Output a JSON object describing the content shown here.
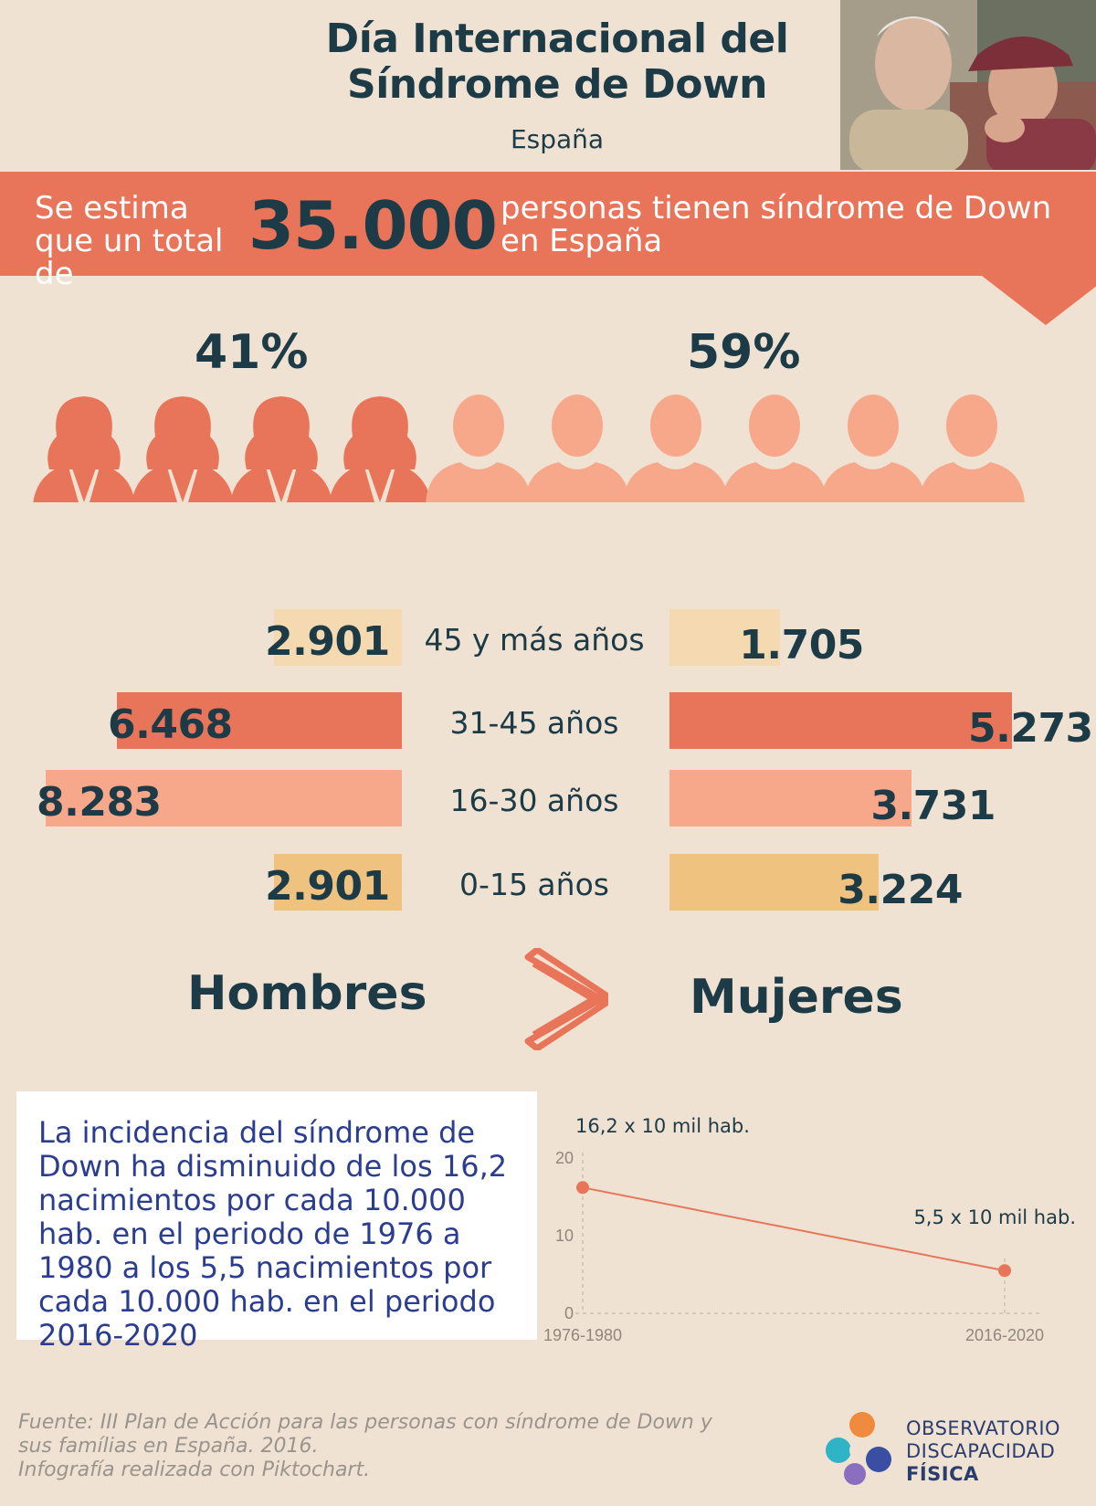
{
  "header": {
    "title": "Día Internacional del Síndrome de Down",
    "subtitle": "España"
  },
  "banner": {
    "lead": "Se estima que un total de",
    "number": "35.000",
    "text": "personas tienen síndrome de Down en España"
  },
  "gender_split": {
    "left_pct": "41%",
    "right_pct": "59%",
    "icons_left": 4,
    "icons_right": 6,
    "color_women": "#e8755a",
    "color_men": "#f7a88b"
  },
  "age_groups": [
    {
      "label": "45 y más años",
      "hombres": "2.901",
      "mujeres": "1.705",
      "hombres_num": 2901,
      "mujeres_num": 1705,
      "color": "#f5d9b0"
    },
    {
      "label": "31-45 años",
      "hombres": "6.468",
      "mujeres": "5.273",
      "hombres_num": 6468,
      "mujeres_num": 5273,
      "color": "#e8755a"
    },
    {
      "label": "16-30 años",
      "hombres": "8.283",
      "mujeres": "3.731",
      "hombres_num": 8283,
      "mujeres_num": 3731,
      "color": "#f7a88b"
    },
    {
      "label": "0-15 años",
      "hombres": "2.901",
      "mujeres": "3.224",
      "hombres_num": 2901,
      "mujeres_num": 3224,
      "color": "#f0c27f"
    }
  ],
  "legend": {
    "left": "Hombres",
    "symbol": ">",
    "right": "Mujeres"
  },
  "incidence": {
    "text": "La incidencia del síndrome de Down ha disminuido de los 16,2 nacimientos por cada 10.000 hab. en el periodo de 1976 a 1980 a los 5,5 nacimientos por cada 10.000 hab. en el periodo 2016-2020"
  },
  "chart_data": {
    "type": "line",
    "categories": [
      "1976-1980",
      "2016-2020"
    ],
    "series": [
      {
        "values": [
          16.2,
          5.5
        ]
      }
    ],
    "data_labels": [
      "16,2 x 10 mil hab.",
      "5,5 x 10 mil hab."
    ],
    "yticks": [
      "0",
      "10",
      "20"
    ],
    "ylim": [
      0,
      20
    ],
    "color": "#e8755a"
  },
  "footer": {
    "source_line1": "Fuente: III Plan de Acción para las personas con síndrome de Down y",
    "source_line2": "sus famílias en España. 2016.",
    "source_line3": "Infografía realizada con Piktochart.",
    "logo_line1": "OBSERVATORIO",
    "logo_line2": "DISCAPACIDAD",
    "logo_line3": "FÍSICA"
  }
}
